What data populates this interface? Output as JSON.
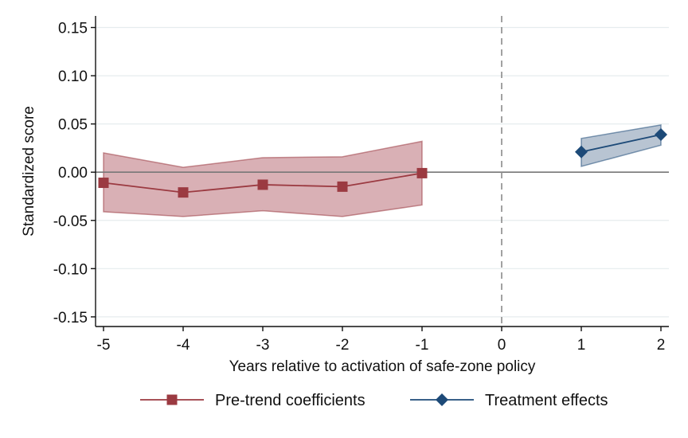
{
  "chart_data": {
    "type": "line",
    "title": "",
    "xlabel": "Years relative to activation of safe-zone policy",
    "ylabel": "Standardized score",
    "x_ticks": [
      -5,
      -4,
      -3,
      -2,
      -1,
      0,
      1,
      2
    ],
    "x_tick_labels": [
      "-5",
      "-4",
      "-3",
      "-2",
      "-1",
      "0",
      "1",
      "2"
    ],
    "y_ticks": [
      0.15,
      0.1,
      0.05,
      0.0,
      -0.05,
      -0.1,
      -0.15
    ],
    "y_tick_labels": [
      "0.15",
      "0.10",
      "0.05",
      "0.00",
      "-0.05",
      "-0.10",
      "-0.15"
    ],
    "xlim": [
      -5.1,
      2.1
    ],
    "ylim": [
      -0.16,
      0.162
    ],
    "grid": "horizontal",
    "reference_lines": {
      "y": 0,
      "x": 0,
      "x_style": "dashed"
    },
    "legend": "bottom",
    "series": [
      {
        "name": "Pre-trend coefficients",
        "marker": "square",
        "color": "#9b3a41",
        "band_color": "#d9b0b5",
        "x": [
          -5,
          -4,
          -3,
          -2,
          -1
        ],
        "y": [
          -0.011,
          -0.021,
          -0.013,
          -0.015,
          -0.001
        ],
        "ci_low": [
          -0.041,
          -0.046,
          -0.04,
          -0.046,
          -0.034
        ],
        "ci_high": [
          0.02,
          0.005,
          0.015,
          0.016,
          0.032
        ]
      },
      {
        "name": "Treatment effects",
        "marker": "diamond",
        "color": "#1d4a78",
        "band_color": "#b8c4d2",
        "x": [
          1,
          2
        ],
        "y": [
          0.021,
          0.039
        ],
        "ci_low": [
          0.006,
          0.028
        ],
        "ci_high": [
          0.035,
          0.049
        ]
      }
    ]
  }
}
